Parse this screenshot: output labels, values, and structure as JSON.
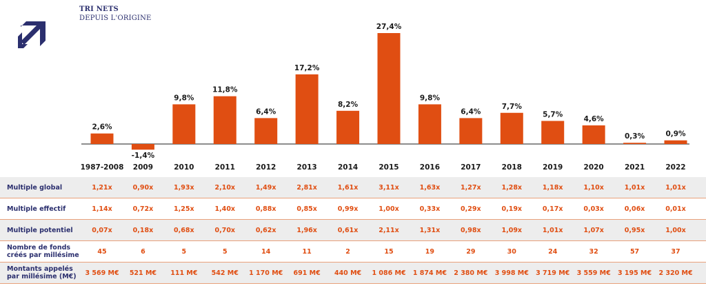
{
  "header": {
    "title": "TRI NETS",
    "subtitle": "DEPUIS L'ORIGINE"
  },
  "colors": {
    "bar": "#e04e12",
    "navy": "#2b2f6e",
    "accent": "#e04e12"
  },
  "chart_data": {
    "type": "bar",
    "categories": [
      "1987-2008",
      "2009",
      "2010",
      "2011",
      "2012",
      "2013",
      "2014",
      "2015",
      "2016",
      "2017",
      "2018",
      "2019",
      "2020",
      "2021",
      "2022"
    ],
    "values": [
      2.6,
      -1.4,
      9.8,
      11.8,
      6.4,
      17.2,
      8.2,
      27.4,
      9.8,
      6.4,
      7.7,
      5.7,
      4.6,
      0.3,
      0.9
    ],
    "value_labels": [
      "2,6%",
      "-1,4%",
      "9,8%",
      "11,8%",
      "6,4%",
      "17,2%",
      "8,2%",
      "27,4%",
      "9,8%",
      "6,4%",
      "7,7%",
      "5,7%",
      "4,6%",
      "0,3%",
      "0,9%"
    ]
  },
  "table": {
    "rows": [
      {
        "label": "Multiple global",
        "values": [
          "1,21x",
          "0,90x",
          "1,93x",
          "2,10x",
          "1,49x",
          "2,81x",
          "1,61x",
          "3,11x",
          "1,63x",
          "1,27x",
          "1,28x",
          "1,18x",
          "1,10x",
          "1,01x",
          "1,01x"
        ]
      },
      {
        "label": "Multiple effectif",
        "values": [
          "1,14x",
          "0,72x",
          "1,25x",
          "1,40x",
          "0,88x",
          "0,85x",
          "0,99x",
          "1,00x",
          "0,33x",
          "0,29x",
          "0,19x",
          "0,17x",
          "0,03x",
          "0,06x",
          "0,01x"
        ]
      },
      {
        "label": "Multiple potentiel",
        "values": [
          "0,07x",
          "0,18x",
          "0,68x",
          "0,70x",
          "0,62x",
          "1,96x",
          "0,61x",
          "2,11x",
          "1,31x",
          "0,98x",
          "1,09x",
          "1,01x",
          "1,07x",
          "0,95x",
          "1,00x"
        ]
      },
      {
        "label": "Nombre de fonds créés par millésime",
        "values": [
          "45",
          "6",
          "5",
          "5",
          "14",
          "11",
          "2",
          "15",
          "19",
          "29",
          "30",
          "24",
          "32",
          "57",
          "37"
        ]
      },
      {
        "label": "Montants appelés par millésime (M€)",
        "values": [
          "3 569 M€",
          "521 M€",
          "111 M€",
          "542 M€",
          "1 170 M€",
          "691 M€",
          "440 M€",
          "1 086 M€",
          "1 874 M€",
          "2 380 M€",
          "3 998 M€",
          "3 719 M€",
          "3 559 M€",
          "3 195 M€",
          "2 320 M€"
        ]
      }
    ]
  }
}
